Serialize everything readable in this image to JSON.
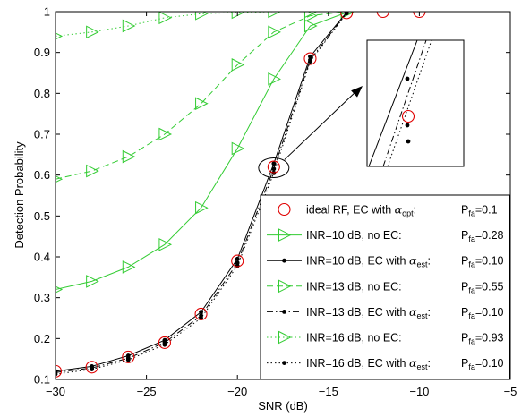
{
  "chart_data": {
    "type": "line",
    "xlabel": "SNR (dB)",
    "ylabel": "Detection Probability",
    "xlim": [
      -30,
      -5
    ],
    "ylim": [
      0.1,
      1.0
    ],
    "xticks": [
      -30,
      -25,
      -20,
      -15,
      -10,
      -5
    ],
    "yticks": [
      0.1,
      0.2,
      0.3,
      0.4,
      0.5,
      0.6,
      0.7,
      0.8,
      0.9,
      1.0
    ],
    "xtick_labels": [
      "−30",
      "−25",
      "−20",
      "−15",
      "−10",
      "−5"
    ],
    "ytick_labels": [
      "0.1",
      "0.2",
      "0.3",
      "0.4",
      "0.5",
      "0.6",
      "0.7",
      "0.8",
      "0.9",
      "1"
    ],
    "grid": false,
    "legend_position": "bottom-right",
    "x": [
      -30,
      -28,
      -26,
      -24,
      -22,
      -20,
      -18,
      -16,
      -14,
      -12,
      -10
    ],
    "series": [
      {
        "name": "ideal RF, EC with αopt:",
        "name_main": "ideal RF, EC with ",
        "name_symbol": "α",
        "name_sub": "opt",
        "name_tail": ":",
        "pfa_label": "P",
        "pfa_sub": "fa",
        "pfa_value": "=0.1",
        "color": "#e00000",
        "marker": "circle",
        "line": "none",
        "values": [
          0.12,
          0.13,
          0.155,
          0.19,
          0.26,
          0.39,
          0.62,
          0.885,
          0.997,
          1.0,
          1.0
        ]
      },
      {
        "name": "INR=10 dB, no EC:",
        "name_main": "INR=10 dB, no EC:",
        "pfa_label": "P",
        "pfa_sub": "fa",
        "pfa_value": "=0.28",
        "color": "#33cc33",
        "marker": "triangle-right",
        "line": "solid",
        "values": [
          0.32,
          0.34,
          0.375,
          0.43,
          0.52,
          0.665,
          0.835,
          0.965,
          0.998,
          null,
          null
        ]
      },
      {
        "name": "INR=10 dB, EC with αest:",
        "name_main": "INR=10 dB, EC with ",
        "name_symbol": "α",
        "name_sub": "est",
        "name_tail": ":",
        "pfa_label": "P",
        "pfa_sub": "fa",
        "pfa_value": "=0.10",
        "color": "#000000",
        "marker": "dot",
        "line": "solid",
        "values": [
          0.12,
          0.132,
          0.158,
          0.196,
          0.265,
          0.395,
          0.628,
          0.89,
          0.998,
          null,
          null
        ]
      },
      {
        "name": "INR=13 dB, no EC:",
        "name_main": "INR=13 dB, no EC:",
        "pfa_label": "P",
        "pfa_sub": "fa",
        "pfa_value": "=0.55",
        "color": "#33cc33",
        "marker": "triangle-right",
        "line": "dashed",
        "values": [
          0.59,
          0.61,
          0.645,
          0.7,
          0.775,
          0.87,
          0.95,
          0.99,
          1.0,
          null,
          null
        ]
      },
      {
        "name": "INR=13 dB, EC with αest:",
        "name_main": "INR=13 dB, EC with ",
        "name_symbol": "α",
        "name_sub": "est",
        "name_tail": ":",
        "pfa_label": "P",
        "pfa_sub": "fa",
        "pfa_value": "=0.10",
        "color": "#000000",
        "marker": "dot",
        "line": "dashdot",
        "values": [
          0.117,
          0.128,
          0.152,
          0.19,
          0.256,
          0.385,
          0.615,
          0.882,
          0.997,
          null,
          null
        ]
      },
      {
        "name": "INR=16 dB, no EC:",
        "name_main": "INR=16 dB, no EC:",
        "pfa_label": "P",
        "pfa_sub": "fa",
        "pfa_value": "=0.93",
        "color": "#33cc33",
        "marker": "triangle-right",
        "line": "dotted",
        "values": [
          0.94,
          0.95,
          0.965,
          0.985,
          0.995,
          0.998,
          1.0,
          1.0,
          null,
          null,
          null
        ]
      },
      {
        "name": "INR=16 dB, EC with αest:",
        "name_main": "INR=16 dB, EC with ",
        "name_symbol": "α",
        "name_sub": "est",
        "name_tail": ":",
        "pfa_label": "P",
        "pfa_sub": "fa",
        "pfa_value": "=0.10",
        "color": "#000000",
        "marker": "dot",
        "line": "dotted",
        "values": [
          0.113,
          0.125,
          0.148,
          0.185,
          0.25,
          0.378,
          0.605,
          0.878,
          0.996,
          null,
          null
        ]
      }
    ],
    "inset": {
      "description": "zoomed view around SNR = -18 dB",
      "x_center": -18,
      "points": [
        {
          "series": 2,
          "y": 0.628
        },
        {
          "series": 0,
          "y": 0.62
        },
        {
          "series": 4,
          "y": 0.615
        },
        {
          "series": 6,
          "y": 0.605
        }
      ]
    }
  }
}
